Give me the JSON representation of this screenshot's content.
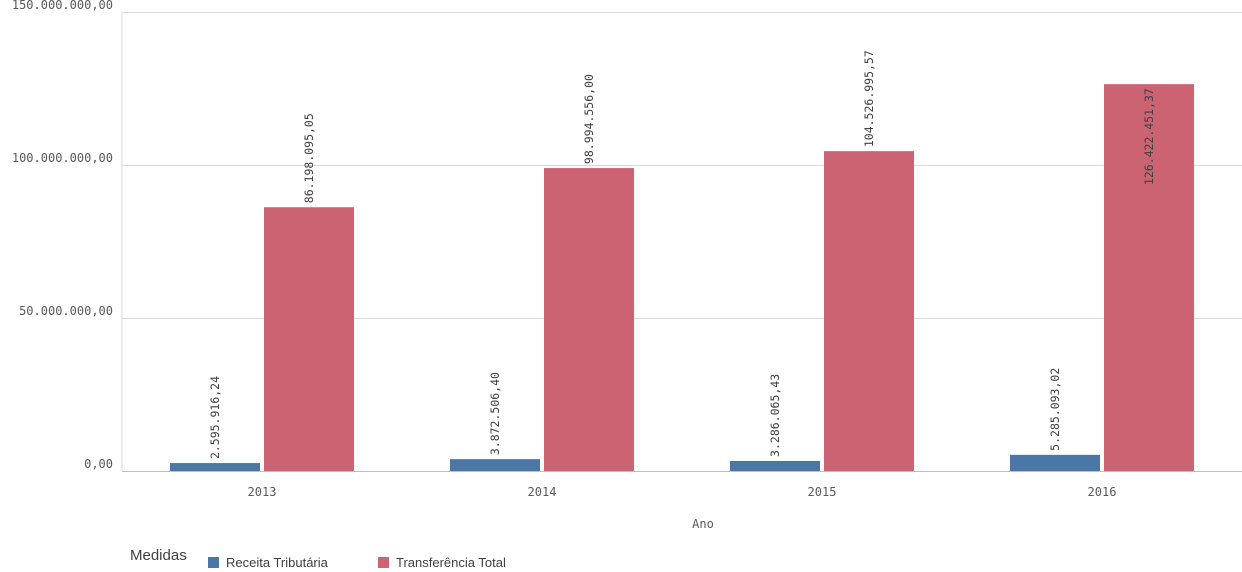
{
  "chart_data": {
    "type": "bar",
    "categories": [
      "2013",
      "2014",
      "2015",
      "2016"
    ],
    "series": [
      {
        "name": "Receita Tributária",
        "color": "#4a77a8",
        "values": [
          2595916.24,
          3872506.4,
          3286065.43,
          5285093.02
        ],
        "labels": [
          "2.595.916,24",
          "3.872.506,40",
          "3.286.065,43",
          "5.285.093,02"
        ]
      },
      {
        "name": "Transferência Total",
        "color": "#cb6373",
        "values": [
          86198095.05,
          98994556.0,
          104526995.57,
          126422451.37
        ],
        "labels": [
          "86.198.095,05",
          "98.994.556,00",
          "104.526.995,57",
          "126.422.451,37"
        ]
      }
    ],
    "y_ticks": [
      0,
      50000000,
      100000000,
      150000000
    ],
    "y_tick_labels": [
      "0,00",
      "50.000.000,00",
      "100.000.000,00",
      "150.000.000,00"
    ],
    "ylim": [
      0,
      150000000
    ],
    "xlabel": "Ano",
    "ylabel": "",
    "legend_title": "Medidas",
    "legend_position": "bottom-left",
    "grid": true
  }
}
